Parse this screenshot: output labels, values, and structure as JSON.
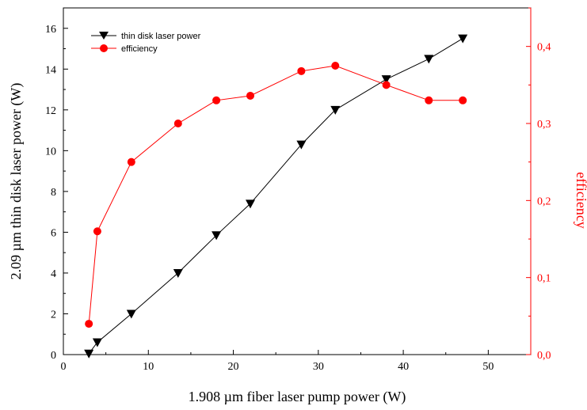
{
  "chart_data": {
    "type": "line",
    "xlabel": "1.908 µm fiber laser pump power (W)",
    "ylabel_left": "2.09 µm thin disk laser power (W)",
    "ylabel_right": "efficiency",
    "xlim": [
      0,
      55
    ],
    "ylim_left": [
      0,
      17
    ],
    "ylim_right": [
      0,
      0.45
    ],
    "x_ticks": [
      "0",
      "10",
      "20",
      "30",
      "40",
      "50"
    ],
    "x_tick_values": [
      0,
      10,
      20,
      30,
      40,
      50
    ],
    "y_left_ticks": [
      "0",
      "2",
      "4",
      "6",
      "8",
      "10",
      "12",
      "14",
      "16"
    ],
    "y_left_tick_values": [
      0,
      2,
      4,
      6,
      8,
      10,
      12,
      14,
      16
    ],
    "y_right_ticks": [
      "0,0",
      "0,1",
      "0,2",
      "0,3",
      "0,4"
    ],
    "y_right_tick_values": [
      0,
      0.1,
      0.2,
      0.3,
      0.4
    ],
    "grid": false,
    "legend_position": "top-left",
    "series": [
      {
        "name": "thin disk laser power",
        "axis": "left",
        "marker": "triangle-down",
        "color": "#000000",
        "x": [
          3,
          4,
          8,
          13.5,
          18,
          22,
          28,
          32,
          38,
          43,
          47
        ],
        "values": [
          0.05,
          0.6,
          2.0,
          4.0,
          5.85,
          7.4,
          10.3,
          12.0,
          13.5,
          14.5,
          15.5
        ]
      },
      {
        "name": "efficiency",
        "axis": "right",
        "marker": "circle",
        "color": "#ff0000",
        "x": [
          3,
          4,
          8,
          13.5,
          18,
          22,
          28,
          32,
          38,
          43,
          47
        ],
        "values": [
          0.04,
          0.16,
          0.25,
          0.3,
          0.33,
          0.336,
          0.368,
          0.375,
          0.35,
          0.33,
          0.33
        ]
      }
    ]
  }
}
